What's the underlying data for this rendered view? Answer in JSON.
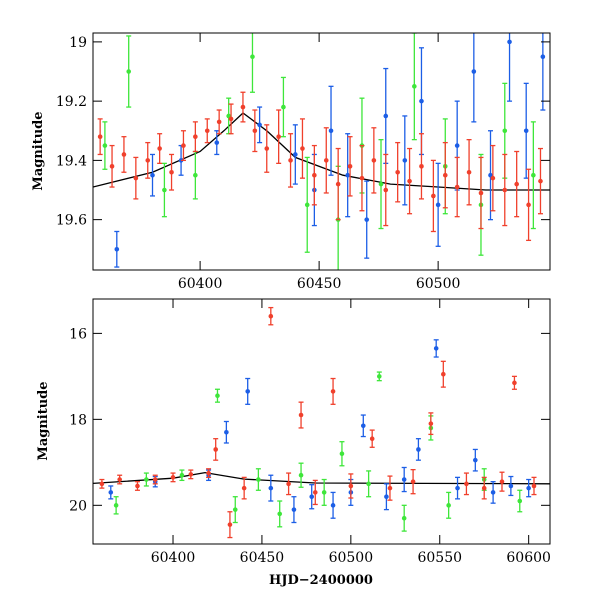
{
  "chart_data": [
    {
      "type": "scatter",
      "title": "",
      "xlabel": "",
      "ylabel": "Magnitude",
      "xlim": [
        60355,
        60547
      ],
      "ylim": [
        19.77,
        18.97
      ],
      "y_inverted": true,
      "grid": false,
      "xticks": [
        60400,
        60450,
        60500
      ],
      "yticks": [
        19,
        19.2,
        19.4,
        19.6
      ],
      "ytick_labels": [
        "19",
        "19.2",
        "19.4",
        "19.6"
      ],
      "colors": {
        "blue": "#1c5ee6",
        "green": "#3ee63a",
        "red": "#f0402c",
        "model": "#000000"
      },
      "model_curve": [
        {
          "x": 60355,
          "y": 19.49
        },
        {
          "x": 60380,
          "y": 19.44
        },
        {
          "x": 60400,
          "y": 19.37
        },
        {
          "x": 60410,
          "y": 19.3
        },
        {
          "x": 60418,
          "y": 19.24
        },
        {
          "x": 60428,
          "y": 19.3
        },
        {
          "x": 60440,
          "y": 19.39
        },
        {
          "x": 60460,
          "y": 19.45
        },
        {
          "x": 60480,
          "y": 19.48
        },
        {
          "x": 60500,
          "y": 19.49
        },
        {
          "x": 60520,
          "y": 19.5
        },
        {
          "x": 60547,
          "y": 19.5
        }
      ],
      "series": [
        {
          "color": "blue",
          "points": [
            {
              "x": 60365,
              "y": 19.7,
              "err": 0.06
            },
            {
              "x": 60380,
              "y": 19.45,
              "err": 0.07
            },
            {
              "x": 60392,
              "y": 19.4,
              "err": 0.05
            },
            {
              "x": 60407,
              "y": 19.34,
              "err": 0.04
            },
            {
              "x": 60425,
              "y": 19.28,
              "err": 0.06
            },
            {
              "x": 60440,
              "y": 19.38,
              "err": 0.1
            },
            {
              "x": 60448,
              "y": 19.5,
              "err": 0.12
            },
            {
              "x": 60455,
              "y": 19.3,
              "err": 0.15
            },
            {
              "x": 60462,
              "y": 19.45,
              "err": 0.14
            },
            {
              "x": 60470,
              "y": 19.6,
              "err": 0.13
            },
            {
              "x": 60478,
              "y": 19.25,
              "err": 0.16
            },
            {
              "x": 60486,
              "y": 19.4,
              "err": 0.15
            },
            {
              "x": 60493,
              "y": 19.2,
              "err": 0.18
            },
            {
              "x": 60500,
              "y": 19.55,
              "err": 0.14
            },
            {
              "x": 60508,
              "y": 19.35,
              "err": 0.15
            },
            {
              "x": 60515,
              "y": 19.1,
              "err": 0.17
            },
            {
              "x": 60522,
              "y": 19.45,
              "err": 0.15
            },
            {
              "x": 60530,
              "y": 19.0,
              "err": 0.2
            },
            {
              "x": 60537,
              "y": 19.3,
              "err": 0.16
            },
            {
              "x": 60544,
              "y": 19.05,
              "err": 0.18
            }
          ]
        },
        {
          "color": "green",
          "points": [
            {
              "x": 60360,
              "y": 19.35,
              "err": 0.08
            },
            {
              "x": 60370,
              "y": 19.1,
              "err": 0.12
            },
            {
              "x": 60385,
              "y": 19.5,
              "err": 0.09
            },
            {
              "x": 60398,
              "y": 19.45,
              "err": 0.08
            },
            {
              "x": 60412,
              "y": 19.25,
              "err": 0.06
            },
            {
              "x": 60422,
              "y": 19.05,
              "err": 0.12
            },
            {
              "x": 60435,
              "y": 19.22,
              "err": 0.1
            },
            {
              "x": 60445,
              "y": 19.55,
              "err": 0.16
            },
            {
              "x": 60458,
              "y": 19.6,
              "err": 0.18
            },
            {
              "x": 60468,
              "y": 19.35,
              "err": 0.16
            },
            {
              "x": 60476,
              "y": 19.48,
              "err": 0.15
            },
            {
              "x": 60490,
              "y": 19.15,
              "err": 0.18
            },
            {
              "x": 60503,
              "y": 19.42,
              "err": 0.16
            },
            {
              "x": 60518,
              "y": 19.55,
              "err": 0.17
            },
            {
              "x": 60528,
              "y": 19.3,
              "err": 0.16
            },
            {
              "x": 60540,
              "y": 19.45,
              "err": 0.18
            }
          ]
        },
        {
          "color": "red",
          "points": [
            {
              "x": 60358,
              "y": 19.32,
              "err": 0.06
            },
            {
              "x": 60363,
              "y": 19.42,
              "err": 0.07
            },
            {
              "x": 60368,
              "y": 19.38,
              "err": 0.06
            },
            {
              "x": 60373,
              "y": 19.46,
              "err": 0.07
            },
            {
              "x": 60378,
              "y": 19.4,
              "err": 0.06
            },
            {
              "x": 60383,
              "y": 19.36,
              "err": 0.05
            },
            {
              "x": 60388,
              "y": 19.44,
              "err": 0.06
            },
            {
              "x": 60393,
              "y": 19.35,
              "err": 0.05
            },
            {
              "x": 60398,
              "y": 19.32,
              "err": 0.05
            },
            {
              "x": 60403,
              "y": 19.3,
              "err": 0.04
            },
            {
              "x": 60408,
              "y": 19.27,
              "err": 0.04
            },
            {
              "x": 60413,
              "y": 19.26,
              "err": 0.05
            },
            {
              "x": 60418,
              "y": 19.22,
              "err": 0.05
            },
            {
              "x": 60423,
              "y": 19.3,
              "err": 0.07
            },
            {
              "x": 60428,
              "y": 19.36,
              "err": 0.08
            },
            {
              "x": 60433,
              "y": 19.32,
              "err": 0.09
            },
            {
              "x": 60438,
              "y": 19.4,
              "err": 0.09
            },
            {
              "x": 60443,
              "y": 19.36,
              "err": 0.1
            },
            {
              "x": 60448,
              "y": 19.45,
              "err": 0.1
            },
            {
              "x": 60453,
              "y": 19.4,
              "err": 0.11
            },
            {
              "x": 60458,
              "y": 19.48,
              "err": 0.12
            },
            {
              "x": 60463,
              "y": 19.42,
              "err": 0.1
            },
            {
              "x": 60468,
              "y": 19.46,
              "err": 0.11
            },
            {
              "x": 60473,
              "y": 19.4,
              "err": 0.11
            },
            {
              "x": 60478,
              "y": 19.5,
              "err": 0.12
            },
            {
              "x": 60483,
              "y": 19.44,
              "err": 0.1
            },
            {
              "x": 60488,
              "y": 19.47,
              "err": 0.11
            },
            {
              "x": 60493,
              "y": 19.42,
              "err": 0.11
            },
            {
              "x": 60498,
              "y": 19.52,
              "err": 0.12
            },
            {
              "x": 60503,
              "y": 19.45,
              "err": 0.11
            },
            {
              "x": 60508,
              "y": 19.49,
              "err": 0.1
            },
            {
              "x": 60513,
              "y": 19.44,
              "err": 0.11
            },
            {
              "x": 60518,
              "y": 19.51,
              "err": 0.12
            },
            {
              "x": 60523,
              "y": 19.46,
              "err": 0.11
            },
            {
              "x": 60528,
              "y": 19.5,
              "err": 0.12
            },
            {
              "x": 60533,
              "y": 19.48,
              "err": 0.11
            },
            {
              "x": 60538,
              "y": 19.55,
              "err": 0.12
            },
            {
              "x": 60543,
              "y": 19.47,
              "err": 0.11
            }
          ]
        }
      ]
    },
    {
      "type": "scatter",
      "title": "",
      "xlabel": "HJD−2400000",
      "ylabel": "Magnitude",
      "xlim": [
        60355,
        60612
      ],
      "ylim": [
        20.9,
        15.2
      ],
      "y_inverted": true,
      "grid": false,
      "xticks": [
        60400,
        60450,
        60500,
        60550,
        60600
      ],
      "yticks": [
        16,
        18,
        20
      ],
      "ytick_labels": [
        "16",
        "18",
        "20"
      ],
      "colors": {
        "blue": "#1c5ee6",
        "green": "#3ee63a",
        "red": "#f0402c",
        "model": "#000000"
      },
      "model_curve": [
        {
          "x": 60355,
          "y": 19.49
        },
        {
          "x": 60400,
          "y": 19.37
        },
        {
          "x": 60418,
          "y": 19.24
        },
        {
          "x": 60440,
          "y": 19.39
        },
        {
          "x": 60480,
          "y": 19.48
        },
        {
          "x": 60612,
          "y": 19.5
        }
      ],
      "series": [
        {
          "color": "blue",
          "points": [
            {
              "x": 60365,
              "y": 19.7,
              "err": 0.15
            },
            {
              "x": 60390,
              "y": 19.45,
              "err": 0.12
            },
            {
              "x": 60420,
              "y": 19.3,
              "err": 0.12
            },
            {
              "x": 60430,
              "y": 18.3,
              "err": 0.25
            },
            {
              "x": 60442,
              "y": 17.35,
              "err": 0.3
            },
            {
              "x": 60455,
              "y": 19.6,
              "err": 0.3
            },
            {
              "x": 60468,
              "y": 20.1,
              "err": 0.3
            },
            {
              "x": 60478,
              "y": 19.8,
              "err": 0.28
            },
            {
              "x": 60490,
              "y": 20.0,
              "err": 0.3
            },
            {
              "x": 60500,
              "y": 19.7,
              "err": 0.3
            },
            {
              "x": 60507,
              "y": 18.15,
              "err": 0.25
            },
            {
              "x": 60520,
              "y": 19.8,
              "err": 0.3
            },
            {
              "x": 60530,
              "y": 19.4,
              "err": 0.28
            },
            {
              "x": 60538,
              "y": 18.7,
              "err": 0.25
            },
            {
              "x": 60548,
              "y": 16.35,
              "err": 0.2
            },
            {
              "x": 60560,
              "y": 19.6,
              "err": 0.25
            },
            {
              "x": 60570,
              "y": 18.95,
              "err": 0.25
            },
            {
              "x": 60580,
              "y": 19.7,
              "err": 0.25
            },
            {
              "x": 60590,
              "y": 19.55,
              "err": 0.22
            },
            {
              "x": 60600,
              "y": 19.6,
              "err": 0.2
            }
          ]
        },
        {
          "color": "green",
          "points": [
            {
              "x": 60368,
              "y": 20.0,
              "err": 0.2
            },
            {
              "x": 60385,
              "y": 19.4,
              "err": 0.15
            },
            {
              "x": 60405,
              "y": 19.3,
              "err": 0.12
            },
            {
              "x": 60425,
              "y": 17.45,
              "err": 0.15
            },
            {
              "x": 60435,
              "y": 20.1,
              "err": 0.3
            },
            {
              "x": 60448,
              "y": 19.4,
              "err": 0.25
            },
            {
              "x": 60460,
              "y": 20.2,
              "err": 0.3
            },
            {
              "x": 60472,
              "y": 19.3,
              "err": 0.28
            },
            {
              "x": 60485,
              "y": 19.7,
              "err": 0.3
            },
            {
              "x": 60495,
              "y": 18.8,
              "err": 0.28
            },
            {
              "x": 60510,
              "y": 19.5,
              "err": 0.3
            },
            {
              "x": 60516,
              "y": 17.0,
              "err": 0.1
            },
            {
              "x": 60530,
              "y": 20.3,
              "err": 0.3
            },
            {
              "x": 60545,
              "y": 18.2,
              "err": 0.28
            },
            {
              "x": 60555,
              "y": 20.0,
              "err": 0.3
            },
            {
              "x": 60575,
              "y": 19.4,
              "err": 0.25
            },
            {
              "x": 60595,
              "y": 19.9,
              "err": 0.25
            }
          ]
        },
        {
          "color": "red",
          "points": [
            {
              "x": 60360,
              "y": 19.5,
              "err": 0.1
            },
            {
              "x": 60370,
              "y": 19.4,
              "err": 0.1
            },
            {
              "x": 60380,
              "y": 19.55,
              "err": 0.1
            },
            {
              "x": 60390,
              "y": 19.4,
              "err": 0.1
            },
            {
              "x": 60400,
              "y": 19.35,
              "err": 0.1
            },
            {
              "x": 60410,
              "y": 19.28,
              "err": 0.1
            },
            {
              "x": 60420,
              "y": 19.25,
              "err": 0.1
            },
            {
              "x": 60424,
              "y": 18.7,
              "err": 0.25
            },
            {
              "x": 60432,
              "y": 20.45,
              "err": 0.3
            },
            {
              "x": 60440,
              "y": 19.6,
              "err": 0.25
            },
            {
              "x": 60455,
              "y": 15.6,
              "err": 0.2
            },
            {
              "x": 60465,
              "y": 19.5,
              "err": 0.25
            },
            {
              "x": 60472,
              "y": 17.9,
              "err": 0.3
            },
            {
              "x": 60480,
              "y": 19.7,
              "err": 0.28
            },
            {
              "x": 60490,
              "y": 17.35,
              "err": 0.3
            },
            {
              "x": 60500,
              "y": 19.55,
              "err": 0.28
            },
            {
              "x": 60512,
              "y": 18.45,
              "err": 0.2
            },
            {
              "x": 60522,
              "y": 19.6,
              "err": 0.28
            },
            {
              "x": 60535,
              "y": 19.45,
              "err": 0.28
            },
            {
              "x": 60545,
              "y": 18.1,
              "err": 0.25
            },
            {
              "x": 60552,
              "y": 16.95,
              "err": 0.3
            },
            {
              "x": 60565,
              "y": 19.5,
              "err": 0.25
            },
            {
              "x": 60575,
              "y": 19.6,
              "err": 0.25
            },
            {
              "x": 60585,
              "y": 19.45,
              "err": 0.22
            },
            {
              "x": 60592,
              "y": 17.15,
              "err": 0.15
            },
            {
              "x": 60603,
              "y": 19.55,
              "err": 0.2
            }
          ]
        }
      ]
    }
  ]
}
